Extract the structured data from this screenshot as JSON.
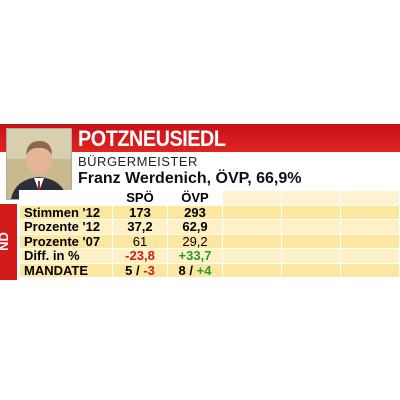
{
  "header": {
    "title": "POTZNEUSIEDL",
    "subtitle": "BÜRGERMEISTER",
    "mayor": "Franz Werdenich, ÖVP, 66,9%",
    "side_label": "ND"
  },
  "table": {
    "columns": [
      "SPÖ",
      "ÖVP"
    ],
    "rows": [
      {
        "label": "Stimmen '12",
        "cells": [
          "173",
          "293"
        ]
      },
      {
        "label": "Prozente '12",
        "cells": [
          "37,2",
          "62,9"
        ]
      },
      {
        "label": "Prozente '07",
        "cells": [
          "61",
          "29,2"
        ]
      },
      {
        "label": "Diff. in %",
        "cells": [
          "-23,8",
          "+33,7"
        ]
      }
    ],
    "mandate": {
      "label": "MANDATE",
      "cells": [
        {
          "seats": "5",
          "change": "-3"
        },
        {
          "seats": "8",
          "change": "+4"
        }
      ]
    }
  }
}
